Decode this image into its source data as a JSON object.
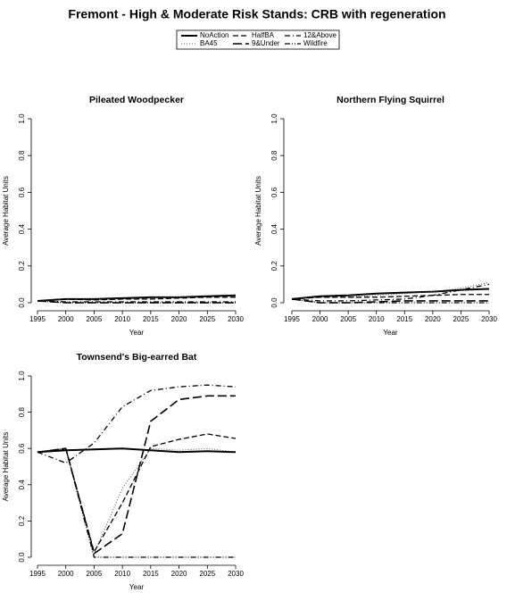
{
  "title": "Fremont  - High & Moderate Risk Stands: CRB with regeneration",
  "legend": [
    {
      "name": "NoAction",
      "color": "#000000",
      "dash": "none",
      "width": 2
    },
    {
      "name": "BA45",
      "color": "#555555",
      "dash": "1 2",
      "width": 1
    },
    {
      "name": "HalfBA",
      "color": "#000000",
      "dash": "6 3",
      "width": 1.3
    },
    {
      "name": "9&Under",
      "color": "#000000",
      "dash": "10 4",
      "width": 1.6
    },
    {
      "name": "12&Above",
      "color": "#000000",
      "dash": "6 3 1 3",
      "width": 1.3
    },
    {
      "name": "Wildfire",
      "color": "#000000",
      "dash": "6 2 1 2 1 2",
      "width": 1.3
    }
  ],
  "chart_data": [
    {
      "type": "line",
      "title": "Pileated Woodpecker",
      "x_label": "Year",
      "y_label": "Average Habitat Units",
      "x": [
        1995,
        2000,
        2005,
        2010,
        2015,
        2020,
        2025,
        2030
      ],
      "xlim": [
        1995,
        2030
      ],
      "xticks": [
        1995,
        2000,
        2005,
        2010,
        2015,
        2020,
        2025,
        2030
      ],
      "ylim": [
        0,
        1
      ],
      "yticks": [
        {
          "value": 0,
          "label": "0.0"
        },
        {
          "value": 0.2,
          "label": "0.2"
        },
        {
          "value": 0.4,
          "label": "0.4"
        },
        {
          "value": 0.6,
          "label": "0.6"
        },
        {
          "value": 0.8,
          "label": "0.8"
        },
        {
          "value": 1,
          "label": "1.0"
        }
      ],
      "series": [
        {
          "values": [
            0.01,
            0.02,
            0.02,
            0.025,
            0.03,
            0.03,
            0.035,
            0.04
          ]
        },
        {
          "values": [
            0.01,
            0.02,
            0.02,
            0.02,
            0.025,
            0.03,
            0.03,
            0.035
          ]
        },
        {
          "values": [
            0.01,
            0.02,
            0.015,
            0.02,
            0.02,
            0.025,
            0.03,
            0.03
          ]
        },
        {
          "values": [
            0.01,
            0,
            0,
            0,
            0,
            0,
            0,
            0
          ]
        },
        {
          "values": [
            0.01,
            0.005,
            0.005,
            0.005,
            0.005,
            0.005,
            0.005,
            0.005
          ]
        },
        {
          "values": [
            0.01,
            0,
            0,
            0,
            0,
            0,
            0,
            0
          ]
        }
      ]
    },
    {
      "type": "line",
      "title": "Northern Flying Squirrel",
      "x_label": "Year",
      "y_label": "Average Habitat Units",
      "x": [
        1995,
        2000,
        2005,
        2010,
        2015,
        2020,
        2025,
        2030
      ],
      "xlim": [
        1995,
        2030
      ],
      "xticks": [
        1995,
        2000,
        2005,
        2010,
        2015,
        2020,
        2025,
        2030
      ],
      "ylim": [
        0,
        1
      ],
      "yticks": [
        {
          "value": 0,
          "label": "0.0"
        },
        {
          "value": 0.2,
          "label": "0.2"
        },
        {
          "value": 0.4,
          "label": "0.4"
        },
        {
          "value": 0.6,
          "label": "0.6"
        },
        {
          "value": 0.8,
          "label": "0.8"
        },
        {
          "value": 1,
          "label": "1.0"
        }
      ],
      "series": [
        {
          "values": [
            0.02,
            0.035,
            0.04,
            0.05,
            0.055,
            0.06,
            0.07,
            0.075
          ]
        },
        {
          "values": [
            0.02,
            0.03,
            0.03,
            0.04,
            0.05,
            0.06,
            0.08,
            0.11
          ]
        },
        {
          "values": [
            0.02,
            0.03,
            0.03,
            0.03,
            0.035,
            0.04,
            0.045,
            0.045
          ]
        },
        {
          "values": [
            0.02,
            0,
            0,
            0.005,
            0.01,
            0.01,
            0.01,
            0.01
          ]
        },
        {
          "values": [
            0.02,
            0.01,
            0.01,
            0.015,
            0.02,
            0.04,
            0.07,
            0.1
          ]
        },
        {
          "values": [
            0.02,
            0,
            0,
            0,
            0,
            0,
            0,
            0
          ]
        }
      ]
    },
    {
      "type": "line",
      "title": "Townsend's Big-earred Bat",
      "x_label": "Year",
      "y_label": "Average Habitat Units",
      "x": [
        1995,
        2000,
        2005,
        2010,
        2015,
        2020,
        2025,
        2030
      ],
      "xlim": [
        1995,
        2030
      ],
      "xticks": [
        1995,
        2000,
        2005,
        2010,
        2015,
        2020,
        2025,
        2030
      ],
      "ylim": [
        0,
        1
      ],
      "yticks": [
        {
          "value": 0,
          "label": "0.0"
        },
        {
          "value": 0.2,
          "label": "0.2"
        },
        {
          "value": 0.4,
          "label": "0.4"
        },
        {
          "value": 0.6,
          "label": "0.6"
        },
        {
          "value": 0.8,
          "label": "0.8"
        },
        {
          "value": 1,
          "label": "1.0"
        }
      ],
      "series": [
        {
          "values": [
            0.58,
            0.59,
            0.595,
            0.6,
            0.59,
            0.58,
            0.585,
            0.58
          ]
        },
        {
          "values": [
            0.58,
            0.6,
            0.02,
            0.38,
            0.6,
            0.59,
            0.6,
            0.58
          ]
        },
        {
          "values": [
            0.58,
            0.6,
            0.03,
            0.3,
            0.61,
            0.65,
            0.68,
            0.655
          ]
        },
        {
          "values": [
            0.58,
            0.6,
            0.02,
            0.13,
            0.75,
            0.87,
            0.89,
            0.89
          ]
        },
        {
          "values": [
            0.58,
            0.52,
            0.63,
            0.83,
            0.92,
            0.94,
            0.95,
            0.94
          ]
        },
        {
          "values": [
            0.58,
            0.6,
            0,
            0,
            0,
            0,
            0,
            0
          ]
        }
      ]
    }
  ]
}
